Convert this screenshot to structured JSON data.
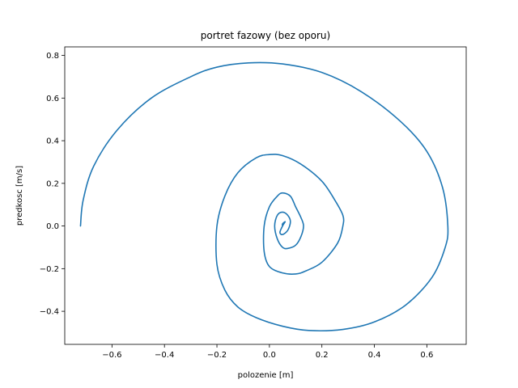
{
  "chart_data": {
    "type": "line",
    "title": "portret fazowy (bez oporu)",
    "xlabel": "polozenie [m]",
    "ylabel": "predkosc [m/s]",
    "xlim": [
      -0.78,
      0.75
    ],
    "ylim": [
      -0.555,
      0.84
    ],
    "x_ticks": [
      -0.6,
      -0.4,
      -0.2,
      0.0,
      0.2,
      0.4,
      0.6
    ],
    "y_ticks": [
      -0.4,
      -0.2,
      0.0,
      0.2,
      0.4,
      0.6,
      0.8
    ],
    "x_tick_labels": [
      "−0.6",
      "−0.4",
      "−0.2",
      "0.0",
      "0.2",
      "0.4",
      "0.6"
    ],
    "y_tick_labels": [
      "−0.4",
      "−0.2",
      "0.0",
      "0.2",
      "0.4",
      "0.6",
      "0.8"
    ],
    "grid": false,
    "series": [
      {
        "color": "#1f77b4",
        "x": [
          -0.72,
          -0.71,
          -0.67,
          -0.58,
          -0.45,
          -0.3,
          -0.2,
          -0.08,
          0.05,
          0.2,
          0.35,
          0.5,
          0.6,
          0.66,
          0.68,
          0.67,
          0.62,
          0.52,
          0.4,
          0.28,
          0.15,
          0.05,
          -0.05,
          -0.12,
          -0.17,
          -0.2,
          -0.2,
          -0.17,
          -0.12,
          -0.05,
          0.0,
          0.05,
          0.12,
          0.2,
          0.25,
          0.28,
          0.28,
          0.26,
          0.2,
          0.14,
          0.1,
          0.05,
          0.0,
          -0.02,
          -0.02,
          0.0,
          0.03,
          0.05,
          0.08,
          0.1,
          0.12,
          0.13,
          0.12,
          0.1,
          0.07,
          0.05,
          0.03,
          0.02,
          0.03,
          0.05,
          0.07,
          0.08,
          0.07,
          0.05,
          0.04,
          0.05,
          0.06,
          0.05,
          0.05
        ],
        "y": [
          0.0,
          0.12,
          0.28,
          0.45,
          0.6,
          0.7,
          0.745,
          0.765,
          0.76,
          0.72,
          0.63,
          0.49,
          0.35,
          0.18,
          0.0,
          -0.1,
          -0.24,
          -0.37,
          -0.45,
          -0.485,
          -0.49,
          -0.47,
          -0.43,
          -0.38,
          -0.3,
          -0.18,
          0.0,
          0.14,
          0.25,
          0.32,
          0.335,
          0.33,
          0.29,
          0.21,
          0.12,
          0.05,
          0.0,
          -0.08,
          -0.17,
          -0.21,
          -0.225,
          -0.22,
          -0.19,
          -0.12,
          0.0,
          0.09,
          0.14,
          0.155,
          0.14,
          0.09,
          0.04,
          0.0,
          -0.05,
          -0.09,
          -0.105,
          -0.1,
          -0.06,
          0.0,
          0.05,
          0.065,
          0.05,
          0.02,
          -0.02,
          -0.04,
          -0.03,
          0.0,
          0.02,
          0.01,
          0.0
        ]
      }
    ]
  }
}
